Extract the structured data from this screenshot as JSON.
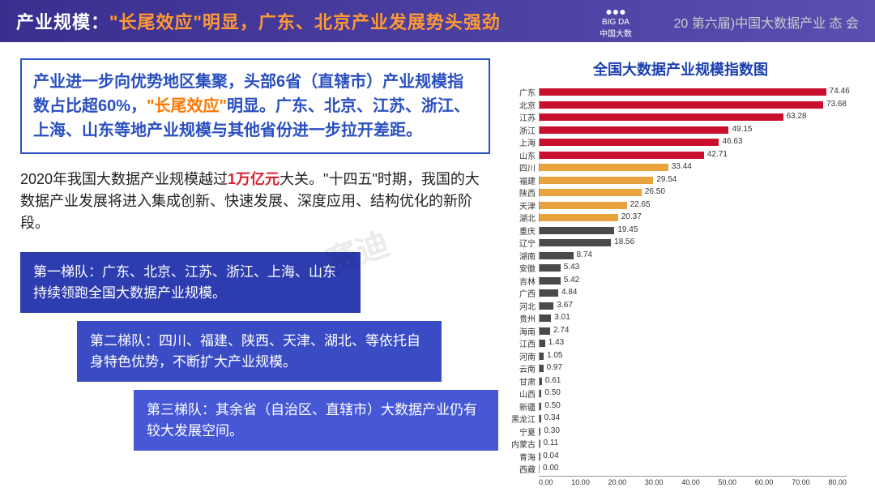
{
  "header": {
    "title_prefix": "产业规模：",
    "title_orange": "\"长尾效应\"明显，广东、北京产业发展势头强劲",
    "logo_top": "BIG DA",
    "logo_bottom": "中国大数",
    "right_text": "20 第六届)中国大数据产业 态 会"
  },
  "summary": {
    "line1a": "产业进一步向优势地区集聚，头部6省（直辖市）产业规模指数占比超60%，",
    "line1b": "\"长尾效应\"",
    "line1c": "明显。广东、北京、江苏、浙江、上海、山东等地产业规模与其他省份进一步拉开差距。"
  },
  "paragraph": {
    "p1": "2020年我国大数据产业规模越过",
    "highlight": "1万亿元",
    "p2": "大关。\"十四五\"时期，我国的大数据产业发展将进入集成创新、快速发展、深度应用、结构优化的新阶段。"
  },
  "tiers": [
    "第一梯队：广东、北京、江苏、浙江、上海、山东持续领跑全国大数据产业规模。",
    "第二梯队：四川、福建、陕西、天津、湖北、等依托自身特色优势，不断扩大产业规模。",
    "第三梯队：其余省（自治区、直辖市）大数据产业仍有较大发展空间。"
  ],
  "chart": {
    "title": "全国大数据产业规模指数图",
    "xmax": 80,
    "xticks": [
      "0.00",
      "10.00",
      "20.00",
      "30.00",
      "40.00",
      "50.00",
      "60.00",
      "70.00",
      "80.00"
    ],
    "colors": {
      "tier1": "#c8102e",
      "tier2": "#e8a33d",
      "tier3": "#4a4a4a"
    },
    "data": [
      {
        "label": "广东",
        "value": 74.46,
        "tier": 1
      },
      {
        "label": "北京",
        "value": 73.68,
        "tier": 1
      },
      {
        "label": "江苏",
        "value": 63.28,
        "tier": 1
      },
      {
        "label": "浙江",
        "value": 49.15,
        "tier": 1
      },
      {
        "label": "上海",
        "value": 46.63,
        "tier": 1
      },
      {
        "label": "山东",
        "value": 42.71,
        "tier": 1
      },
      {
        "label": "四川",
        "value": 33.44,
        "tier": 2
      },
      {
        "label": "福建",
        "value": 29.54,
        "tier": 2
      },
      {
        "label": "陕西",
        "value": 26.5,
        "tier": 2
      },
      {
        "label": "天津",
        "value": 22.65,
        "tier": 2
      },
      {
        "label": "湖北",
        "value": 20.37,
        "tier": 2
      },
      {
        "label": "重庆",
        "value": 19.45,
        "tier": 3
      },
      {
        "label": "辽宁",
        "value": 18.56,
        "tier": 3
      },
      {
        "label": "湖南",
        "value": 8.74,
        "tier": 3
      },
      {
        "label": "安徽",
        "value": 5.43,
        "tier": 3
      },
      {
        "label": "吉林",
        "value": 5.42,
        "tier": 3
      },
      {
        "label": "广西",
        "value": 4.84,
        "tier": 3
      },
      {
        "label": "河北",
        "value": 3.67,
        "tier": 3
      },
      {
        "label": "贵州",
        "value": 3.01,
        "tier": 3
      },
      {
        "label": "海南",
        "value": 2.74,
        "tier": 3
      },
      {
        "label": "江西",
        "value": 1.43,
        "tier": 3
      },
      {
        "label": "河南",
        "value": 1.05,
        "tier": 3
      },
      {
        "label": "云南",
        "value": 0.97,
        "tier": 3
      },
      {
        "label": "甘肃",
        "value": 0.61,
        "tier": 3
      },
      {
        "label": "山西",
        "value": 0.5,
        "tier": 3
      },
      {
        "label": "新疆",
        "value": 0.5,
        "tier": 3
      },
      {
        "label": "黑龙江",
        "value": 0.34,
        "tier": 3
      },
      {
        "label": "宁夏",
        "value": 0.3,
        "tier": 3
      },
      {
        "label": "内蒙古",
        "value": 0.11,
        "tier": 3
      },
      {
        "label": "青海",
        "value": 0.04,
        "tier": 3
      },
      {
        "label": "西藏",
        "value": 0.0,
        "tier": 3
      }
    ]
  },
  "watermark": "赛迪"
}
